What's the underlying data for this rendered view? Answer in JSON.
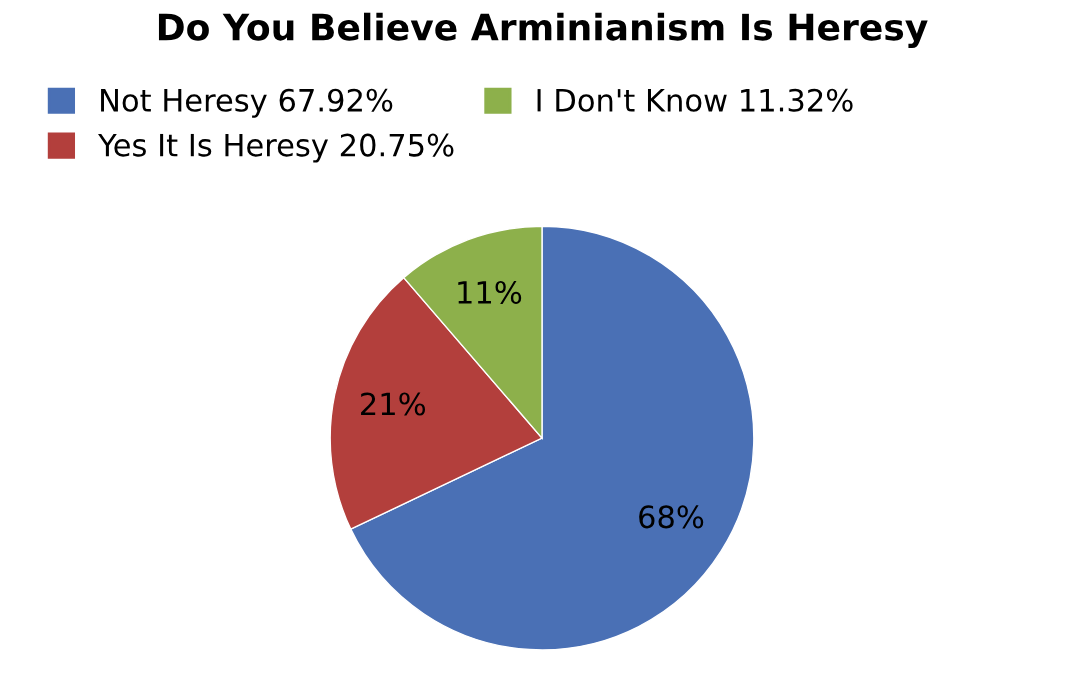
{
  "chart_data": {
    "type": "pie",
    "title": "Do You Believe Arminianism Is Heresy",
    "categories": [
      "Not Heresy 67.92%",
      "Yes It Is Heresy 20.75%",
      "I Don't Know 11.32%"
    ],
    "values": [
      67.92,
      20.75,
      11.32
    ],
    "colors": [
      "#4a70b5",
      "#b33f3c",
      "#8db04b"
    ],
    "value_labels": [
      "68%",
      "21%",
      "11%"
    ],
    "legend": "top left"
  }
}
